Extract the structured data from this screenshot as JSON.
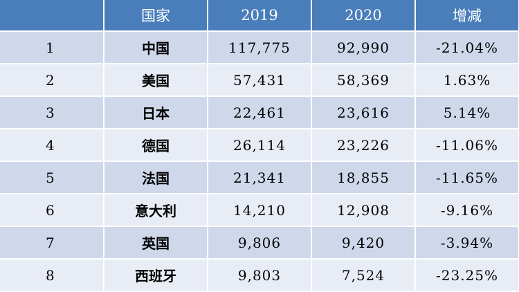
{
  "table": {
    "headers": [
      "",
      "国家",
      "2019",
      "2020",
      "增减"
    ],
    "rows": [
      {
        "rank": "1",
        "country": "中国",
        "y2019": "117,775",
        "y2020": "92,990",
        "change": "-21.04%"
      },
      {
        "rank": "2",
        "country": "美国",
        "y2019": "57,431",
        "y2020": "58,369",
        "change": "1.63%"
      },
      {
        "rank": "3",
        "country": "日本",
        "y2019": "22,461",
        "y2020": "23,616",
        "change": "5.14%"
      },
      {
        "rank": "4",
        "country": "德国",
        "y2019": "26,114",
        "y2020": "23,226",
        "change": "-11.06%"
      },
      {
        "rank": "5",
        "country": "法国",
        "y2019": "21,341",
        "y2020": "18,855",
        "change": "-11.65%"
      },
      {
        "rank": "6",
        "country": "意大利",
        "y2019": "14,210",
        "y2020": "12,908",
        "change": "-9.16%"
      },
      {
        "rank": "7",
        "country": "英国",
        "y2019": "9,806",
        "y2020": "9,420",
        "change": "-3.94%"
      },
      {
        "rank": "8",
        "country": "西班牙",
        "y2019": "9,803",
        "y2020": "7,524",
        "change": "-23.25%"
      }
    ]
  },
  "colors": {
    "header_bg": "#4a7ebb",
    "row_odd_bg": "#cfd8eb",
    "row_even_bg": "#e8ecf5"
  }
}
